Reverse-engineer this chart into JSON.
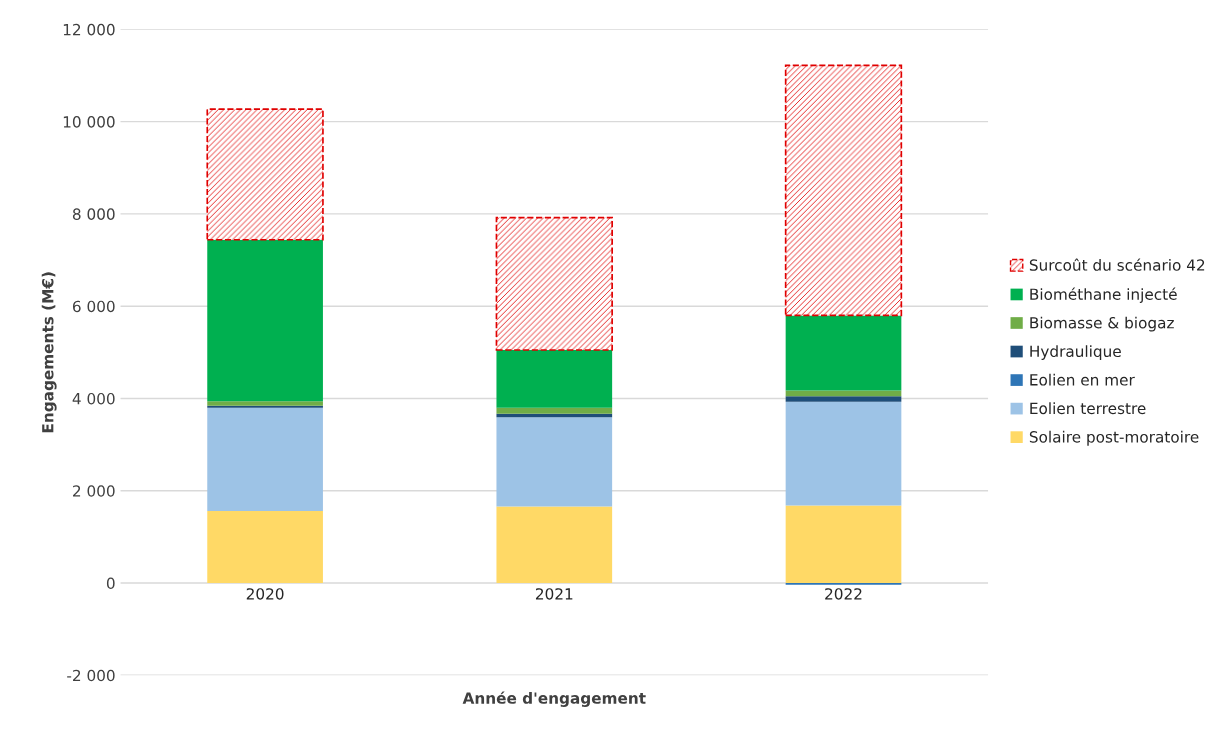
{
  "chart_data": {
    "type": "bar",
    "stacked": true,
    "xlabel": "Année d'engagement",
    "ylabel": "Engagements (M€)",
    "categories": [
      "2020",
      "2021",
      "2022"
    ],
    "series": [
      {
        "name": "Solaire post-moratoire",
        "color": "#ffd966",
        "values": [
          1560,
          1660,
          1680
        ]
      },
      {
        "name": "Eolien terrestre",
        "color": "#9dc3e6",
        "values": [
          2240,
          1930,
          2250
        ]
      },
      {
        "name": "Eolien en mer",
        "color": "#2e75b6",
        "values": [
          0,
          0,
          -40
        ]
      },
      {
        "name": "Hydraulique",
        "color": "#1f4e79",
        "values": [
          40,
          80,
          120
        ]
      },
      {
        "name": "Biomasse & biogaz",
        "color": "#70ad47",
        "values": [
          100,
          130,
          120
        ]
      },
      {
        "name": "Biométhane injecté",
        "color": "#00b050",
        "values": [
          3500,
          1250,
          1630
        ]
      },
      {
        "name": "Surcoût du scénario 42",
        "color": "#e00000",
        "line_style": "dashed",
        "values": [
          2830,
          2870,
          5420
        ]
      }
    ],
    "ylim": [
      -2000,
      12000
    ],
    "yticks": [
      {
        "value": -2000,
        "label": "-2 000"
      },
      0,
      {
        "value": 2000,
        "label": "2 000"
      },
      {
        "value": 4000,
        "label": "4 000"
      },
      {
        "value": 6000,
        "label": "6 000"
      },
      {
        "value": 8000,
        "label": "8 000"
      },
      {
        "value": 10000,
        "label": "10 000"
      },
      {
        "value": 12000,
        "label": "12 000"
      }
    ],
    "grid": "y",
    "legend": "right"
  }
}
